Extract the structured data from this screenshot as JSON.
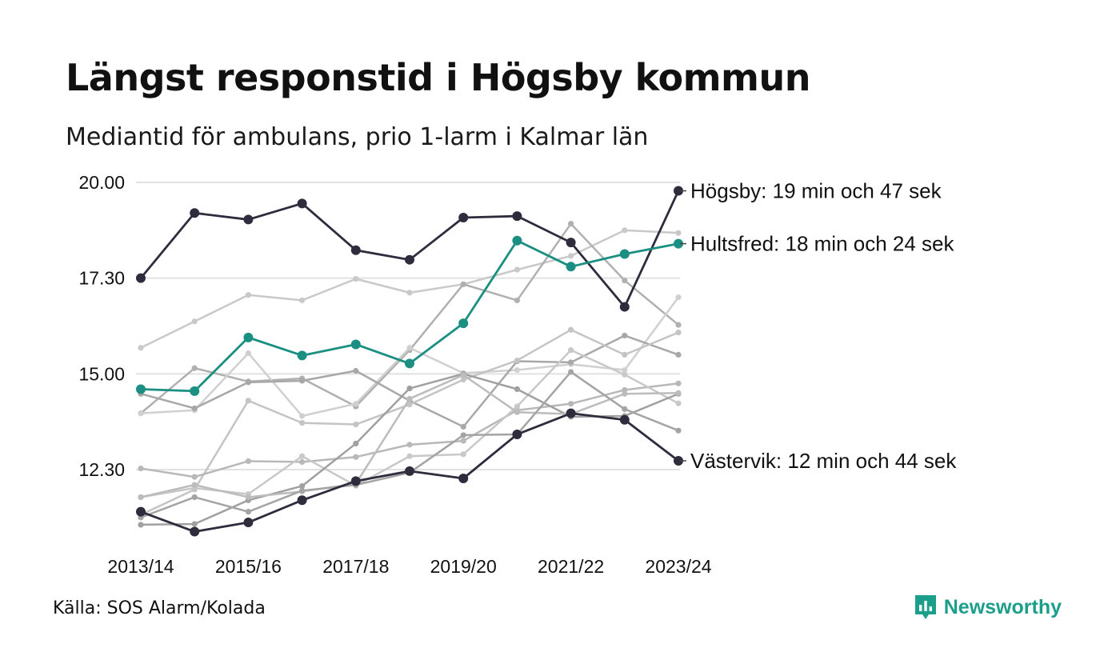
{
  "title": "Längst responstid i Högsby kommun",
  "subtitle": "Mediantid för ambulans, prio 1-larm i Kalmar län",
  "source": "Källa: SOS Alarm/Kolada",
  "brand": {
    "name": "Newsworthy",
    "icon": "newsworthy-logo-icon",
    "color": "#1b9e8a"
  },
  "chart_data": {
    "type": "line",
    "title": "Längst responstid i Högsby kommun",
    "subtitle": "Mediantid för ambulans, prio 1-larm i Kalmar län",
    "xlabel": "",
    "ylabel": "",
    "ylim": [
      10.7,
      20.2
    ],
    "y_ticks": [
      12.5,
      15.0,
      17.5,
      20.0
    ],
    "y_tick_labels": [
      "12.30",
      "15.00",
      "17.30",
      "20.00"
    ],
    "x": [
      "2013/14",
      "2014/15",
      "2015/16",
      "2016/17",
      "2017/18",
      "2018/19",
      "2019/20",
      "2020/21",
      "2021/22",
      "2022/23",
      "2023/24"
    ],
    "x_tick_labels": [
      "2013/14",
      "2015/16",
      "2017/18",
      "2019/20",
      "2021/22",
      "2023/24"
    ],
    "grid": "horizontal",
    "highlight_series": [
      {
        "name": "Högsby",
        "color": "#2e2c3d",
        "label": "Högsby: 19 min och 47 sek",
        "values": [
          17.5,
          19.2,
          19.03,
          19.45,
          18.23,
          17.98,
          19.08,
          19.12,
          18.43,
          16.75,
          19.78
        ]
      },
      {
        "name": "Hultsfred",
        "color": "#1b8f82",
        "label": "Hultsfred: 18 min och 24 sek",
        "values": [
          14.6,
          14.55,
          15.95,
          15.48,
          15.77,
          15.27,
          16.32,
          18.48,
          17.8,
          18.13,
          18.4
        ]
      },
      {
        "name": "Västervik",
        "color": "#2e2c3d",
        "label": "Västervik: 12 min och 44 sek",
        "values": [
          11.4,
          10.88,
          11.12,
          11.7,
          12.2,
          12.46,
          12.27,
          13.42,
          13.97,
          13.8,
          12.73
        ]
      }
    ],
    "background_series": [
      {
        "color": "#c9c9c9",
        "values": [
          15.68,
          16.37,
          17.06,
          16.92,
          17.48,
          17.12,
          17.34,
          17.72,
          18.08,
          18.75,
          18.68
        ]
      },
      {
        "color": "#b0b0b0",
        "values": [
          13.97,
          15.15,
          14.8,
          14.88,
          14.15,
          15.62,
          17.34,
          16.92,
          18.92,
          17.44,
          16.28
        ]
      },
      {
        "color": "#d0d0d0",
        "values": [
          13.97,
          14.05,
          15.54,
          13.9,
          14.22,
          15.68,
          15.02,
          15.1,
          15.25,
          15.1,
          17.0
        ]
      },
      {
        "color": "#a8a8a8",
        "values": [
          14.48,
          14.1,
          14.78,
          14.82,
          15.08,
          14.3,
          13.62,
          15.33,
          15.3,
          16.0,
          15.5
        ]
      },
      {
        "color": "#c4c4c4",
        "values": [
          11.32,
          11.98,
          14.3,
          13.72,
          13.68,
          14.2,
          14.85,
          15.35,
          16.15,
          15.5,
          16.08
        ]
      },
      {
        "color": "#b8b8b8",
        "values": [
          12.53,
          12.31,
          12.72,
          12.7,
          12.83,
          13.15,
          13.25,
          14.05,
          14.22,
          14.58,
          14.75
        ]
      },
      {
        "color": "#c8c8c8",
        "values": [
          11.78,
          12.02,
          11.86,
          12.85,
          12.08,
          12.85,
          12.9,
          14.15,
          15.62,
          14.98,
          14.23
        ]
      },
      {
        "color": "#a0a0a0",
        "values": [
          11.06,
          11.08,
          11.7,
          12.07,
          13.18,
          14.62,
          15.0,
          14.6,
          13.88,
          13.9,
          14.48
        ]
      },
      {
        "color": "#bcbcbc",
        "values": [
          11.78,
          12.1,
          11.78,
          11.93,
          12.13,
          14.35,
          14.97,
          14.0,
          13.95,
          14.48,
          14.5
        ]
      },
      {
        "color": "#a4a4a4",
        "values": [
          11.25,
          11.78,
          11.4,
          11.95,
          12.1,
          12.42,
          13.4,
          13.42,
          15.05,
          14.08,
          13.52
        ]
      }
    ]
  }
}
